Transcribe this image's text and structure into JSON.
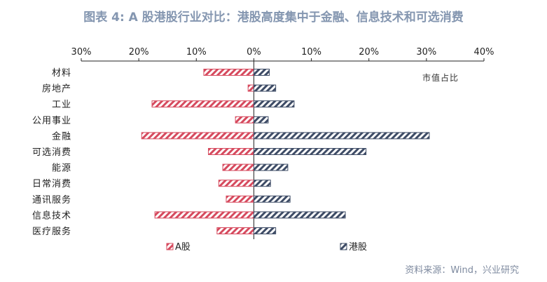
{
  "title": "图表 4: A 股港股行业对比：港股高度集中于金融、信息技术和可选消费",
  "source": "资料来源：Wind，兴业研究",
  "chart_data": {
    "type": "bar",
    "orientation": "horizontal",
    "title": "",
    "annotation": "市值占比",
    "categories": [
      "材料",
      "房地产",
      "工业",
      "公用事业",
      "金融",
      "可选消费",
      "能源",
      "日常消费",
      "通讯服务",
      "信息技术",
      "医疗服务"
    ],
    "x_ticks": [
      "30%",
      "20%",
      "10%",
      "0%",
      "10%",
      "20%",
      "30%",
      "40%"
    ],
    "xlim": [
      -30,
      40
    ],
    "grid": false,
    "legend_position": "bottom",
    "series": [
      {
        "name": "A股",
        "color": "#d64a5e",
        "values": [
          -8.7,
          -1.0,
          -17.7,
          -3.2,
          -19.5,
          -7.9,
          -5.4,
          -6.1,
          -4.8,
          -17.2,
          -6.4
        ]
      },
      {
        "name": "港股",
        "color": "#3e4c66",
        "values": [
          2.7,
          3.8,
          7.0,
          2.5,
          30.5,
          19.5,
          5.9,
          2.9,
          6.3,
          15.9,
          3.8
        ]
      }
    ]
  }
}
